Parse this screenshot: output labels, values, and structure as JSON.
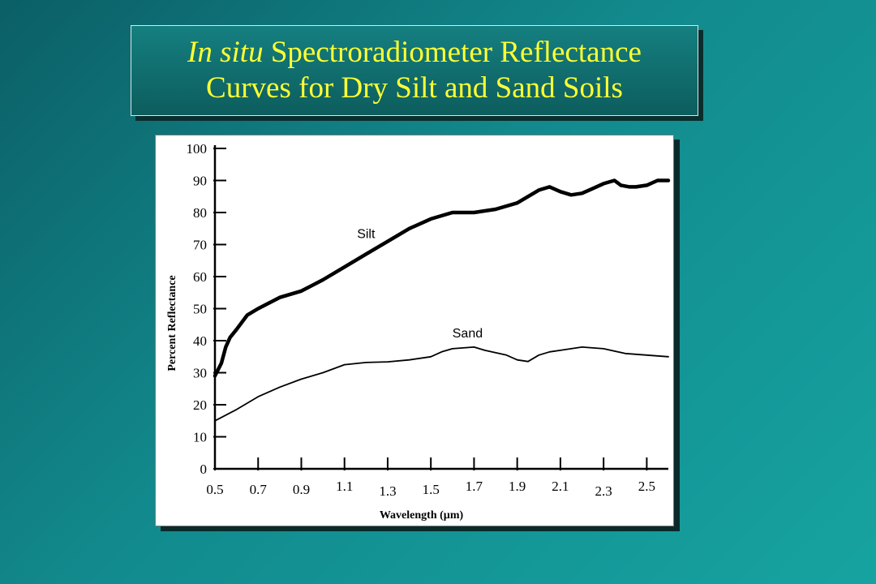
{
  "slide": {
    "title_italic": "In situ",
    "title_line1_rest": " Spectroradiometer Reflectance",
    "title_line2": "Curves for Dry Silt and Sand Soils"
  },
  "chart_data": {
    "type": "line",
    "title": "In situ Spectroradiometer Reflectance Curves for Dry Silt and Sand Soils",
    "xlabel": "Wavelength (µm)",
    "ylabel": "Percent Reflectance",
    "xlim": [
      0.5,
      2.6
    ],
    "ylim": [
      0,
      100
    ],
    "x_ticks": [
      0.5,
      0.7,
      0.9,
      1.1,
      1.3,
      1.5,
      1.7,
      1.9,
      2.1,
      2.3,
      2.5
    ],
    "x_tick_labels": [
      "0.5",
      "0.7",
      "0.9",
      "1.1",
      "1.3",
      "1.5",
      "1.7",
      "1.9",
      "2.1",
      "2.3",
      "2.5"
    ],
    "y_ticks": [
      0,
      10,
      20,
      30,
      40,
      50,
      60,
      70,
      80,
      90,
      100
    ],
    "y_tick_labels": [
      "0",
      "10",
      "20",
      "30",
      "40",
      "50",
      "60",
      "70",
      "80",
      "90",
      "100"
    ],
    "grid": false,
    "legend": "none",
    "series": [
      {
        "name": "Silt",
        "color": "#000000",
        "line_weight": "heavy",
        "x": [
          0.5,
          0.53,
          0.55,
          0.57,
          0.6,
          0.65,
          0.7,
          0.8,
          0.9,
          1.0,
          1.1,
          1.2,
          1.3,
          1.4,
          1.5,
          1.6,
          1.7,
          1.8,
          1.9,
          1.95,
          2.0,
          2.05,
          2.1,
          2.15,
          2.2,
          2.25,
          2.3,
          2.35,
          2.38,
          2.42,
          2.45,
          2.5,
          2.55,
          2.6
        ],
        "y": [
          29,
          33,
          38,
          41,
          43.5,
          48,
          50,
          53.5,
          55.5,
          59,
          63,
          67,
          71,
          75,
          78,
          80,
          80,
          81,
          83,
          85,
          87,
          88,
          86.5,
          85.5,
          86,
          87.5,
          89,
          90,
          88.5,
          88,
          88,
          88.5,
          90,
          90
        ]
      },
      {
        "name": "Sand",
        "color": "#000000",
        "line_weight": "thin",
        "x": [
          0.5,
          0.6,
          0.7,
          0.8,
          0.9,
          1.0,
          1.1,
          1.2,
          1.3,
          1.4,
          1.5,
          1.55,
          1.6,
          1.7,
          1.75,
          1.85,
          1.9,
          1.95,
          2.0,
          2.05,
          2.1,
          2.2,
          2.3,
          2.4,
          2.5,
          2.6
        ],
        "y": [
          15,
          18.5,
          22.5,
          25.5,
          28,
          30,
          32.5,
          33.2,
          33.4,
          34,
          35,
          36.5,
          37.5,
          38,
          37,
          35.5,
          34,
          33.5,
          35.5,
          36.5,
          37,
          38,
          37.5,
          36,
          35.5,
          35
        ]
      }
    ]
  }
}
